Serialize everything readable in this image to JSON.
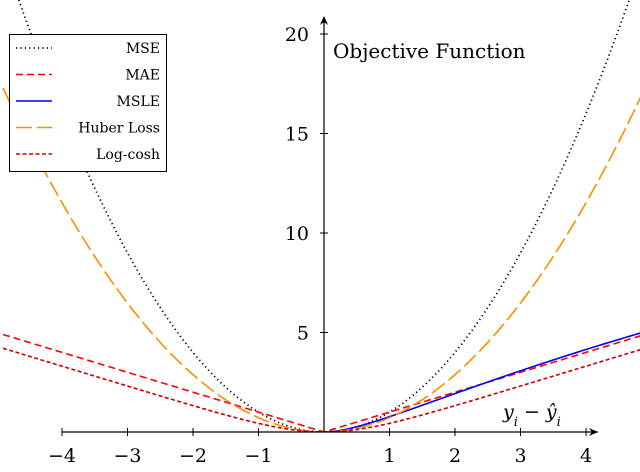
{
  "chart_data": {
    "type": "line",
    "title": "",
    "ylabel": "Objective Function",
    "xlabel": "y_i − ŷ_i",
    "xlabel_display": {
      "y": "y",
      "i": "i",
      "minus": "−",
      "yhat": "ŷ",
      "hat_i": "i"
    },
    "xlim": [
      -4,
      4
    ],
    "ylim": [
      0,
      20
    ],
    "x_ticks": [
      -4,
      -3,
      -2,
      -1,
      1,
      2,
      3,
      4
    ],
    "x_tick_labels": [
      "−4",
      "−3",
      "−2",
      "−1",
      "1",
      "2",
      "3",
      "4"
    ],
    "y_ticks": [
      5,
      10,
      15,
      20
    ],
    "y_tick_labels": [
      "5",
      "10",
      "15",
      "20"
    ],
    "grid": false,
    "legend_position": "top-left",
    "series": [
      {
        "name": "MSE",
        "function": "squared error",
        "color": "#000000",
        "dash": "dotted"
      },
      {
        "name": "MAE",
        "function": "absolute error",
        "color": "#ff0000",
        "dash": "dashed"
      },
      {
        "name": "MSLE",
        "function": "squared log error",
        "color": "#0000ff",
        "dash": "solid"
      },
      {
        "name": "Huber Loss",
        "function": "huber",
        "color": "#ff8c00",
        "dash": "long-dashed"
      },
      {
        "name": "Log-cosh",
        "function": "log cosh",
        "color": "#c80000",
        "dash": "densely-dashed"
      }
    ]
  }
}
